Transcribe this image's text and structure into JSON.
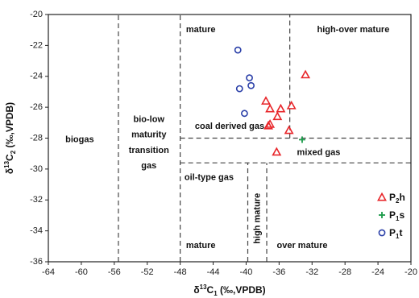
{
  "chart_data": {
    "type": "scatter",
    "xlabel": "δ13C1 (‰,VPDB)",
    "ylabel": "δ13C2 (‰,VPDB)",
    "xlim": [
      -64,
      -20
    ],
    "ylim": [
      -36,
      -20
    ],
    "x_ticks": [
      -64,
      -60,
      -56,
      -52,
      -48,
      -44,
      -40,
      -36,
      -32,
      -28,
      -24,
      -20
    ],
    "y_ticks": [
      -36,
      -34,
      -32,
      -30,
      -28,
      -26,
      -24,
      -22,
      -20
    ],
    "grid": false,
    "legend_position": "bottom-right",
    "series": [
      {
        "name": "P2h",
        "label_main": "P",
        "label_sub": "2",
        "label_end": "h",
        "marker": "triangle",
        "color": "#e8262a",
        "points": [
          {
            "x": -32.8,
            "y": -23.9
          },
          {
            "x": -37.6,
            "y": -25.6
          },
          {
            "x": -37.1,
            "y": -26.1
          },
          {
            "x": -35.8,
            "y": -26.1
          },
          {
            "x": -34.5,
            "y": -25.9
          },
          {
            "x": -36.2,
            "y": -26.6
          },
          {
            "x": -37.3,
            "y": -27.2
          },
          {
            "x": -37.1,
            "y": -27.1
          },
          {
            "x": -34.8,
            "y": -27.5
          },
          {
            "x": -36.3,
            "y": -28.9
          }
        ]
      },
      {
        "name": "P1s",
        "label_main": "P",
        "label_sub": "1",
        "label_end": "s",
        "marker": "plus",
        "color": "#1b9a4a",
        "points": [
          {
            "x": -33.2,
            "y": -28.1
          }
        ]
      },
      {
        "name": "P1t",
        "label_main": "P",
        "label_sub": "1",
        "label_end": "t",
        "marker": "circle",
        "color": "#2a3fa8",
        "points": [
          {
            "x": -41.0,
            "y": -22.3
          },
          {
            "x": -39.6,
            "y": -24.1
          },
          {
            "x": -40.8,
            "y": -24.8
          },
          {
            "x": -39.4,
            "y": -24.6
          },
          {
            "x": -40.2,
            "y": -26.4
          }
        ]
      }
    ],
    "boundaries": [
      {
        "type": "vertical",
        "x": -55.5,
        "y_from": -36,
        "y_to": -20
      },
      {
        "type": "vertical",
        "x": -48,
        "y_from": -36,
        "y_to": -20
      },
      {
        "type": "vertical",
        "x": -34.7,
        "y_from": -28,
        "y_to": -20
      },
      {
        "type": "vertical",
        "x": -39.8,
        "y_from": -36,
        "y_to": -29.6
      },
      {
        "type": "vertical",
        "x": -37.5,
        "y_from": -36,
        "y_to": -29.6
      },
      {
        "type": "horizontal",
        "y": -28,
        "x_from": -48,
        "x_to": -20
      },
      {
        "type": "horizontal",
        "y": -29.6,
        "x_from": -48,
        "x_to": -20
      }
    ],
    "region_labels": [
      {
        "text": "biogas",
        "x": -60.2,
        "y": -28.1
      },
      {
        "text": "bio-low",
        "x": -51.8,
        "y": -26.8
      },
      {
        "text": "maturity",
        "x": -51.8,
        "y": -27.8
      },
      {
        "text": "transition",
        "x": -51.8,
        "y": -28.8
      },
      {
        "text": "gas",
        "x": -51.8,
        "y": -29.8
      },
      {
        "text": "mature",
        "x": -45.5,
        "y": -21.0
      },
      {
        "text": "high-over mature",
        "x": -27.0,
        "y": -21.0
      },
      {
        "text": "coal derived gas",
        "x": -42.0,
        "y": -27.25
      },
      {
        "text": "mixed gas",
        "x": -31.2,
        "y": -28.95
      },
      {
        "text": "oil-type gas",
        "x": -44.5,
        "y": -30.55
      },
      {
        "text": "mature",
        "x": -45.5,
        "y": -34.95
      },
      {
        "text": "high mature",
        "x": -38.6,
        "y": -33.2,
        "vertical": true
      },
      {
        "text": "over mature",
        "x": -33.2,
        "y": -34.95
      }
    ]
  }
}
